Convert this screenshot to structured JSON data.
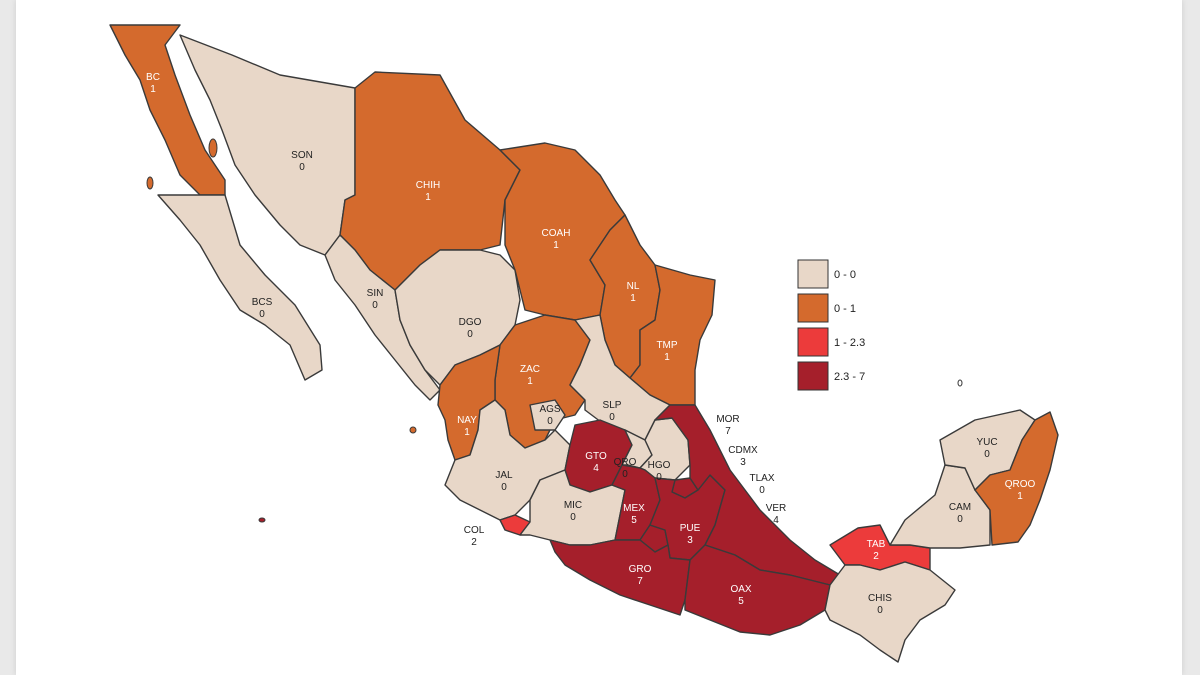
{
  "colors": {
    "c0": "#e8d7c8",
    "c1": "#d46a2d",
    "c2": "#ec3b3b",
    "c3": "#a51f2b"
  },
  "legend": [
    {
      "label": "0 - 0",
      "color": "#e8d7c8"
    },
    {
      "label": "0 - 1",
      "color": "#d46a2d"
    },
    {
      "label": "1 - 2.3",
      "color": "#ec3b3b"
    },
    {
      "label": "2.3 - 7",
      "color": "#a51f2b"
    }
  ],
  "states": {
    "BC": {
      "abbr": "BC",
      "value": "1"
    },
    "BCS": {
      "abbr": "BCS",
      "value": "0"
    },
    "SON": {
      "abbr": "SON",
      "value": "0"
    },
    "CHIH": {
      "abbr": "CHIH",
      "value": "1"
    },
    "COAH": {
      "abbr": "COAH",
      "value": "1"
    },
    "NL": {
      "abbr": "NL",
      "value": "1"
    },
    "TMP": {
      "abbr": "TMP",
      "value": "1"
    },
    "SIN": {
      "abbr": "SIN",
      "value": "0"
    },
    "DGO": {
      "abbr": "DGO",
      "value": "0"
    },
    "ZAC": {
      "abbr": "ZAC",
      "value": "1"
    },
    "NAY": {
      "abbr": "NAY",
      "value": "1"
    },
    "AGS": {
      "abbr": "AGS",
      "value": "0"
    },
    "SLP": {
      "abbr": "SLP",
      "value": "0"
    },
    "JAL": {
      "abbr": "JAL",
      "value": "0"
    },
    "GTO": {
      "abbr": "GTO",
      "value": "4"
    },
    "QRO": {
      "abbr": "QRO",
      "value": "0"
    },
    "HGO": {
      "abbr": "HGO",
      "value": "0"
    },
    "COL": {
      "abbr": "COL",
      "value": "2"
    },
    "MIC": {
      "abbr": "MIC",
      "value": "0"
    },
    "MEX": {
      "abbr": "MEX",
      "value": "5"
    },
    "PUE": {
      "abbr": "PUE",
      "value": "3"
    },
    "GRO": {
      "abbr": "GRO",
      "value": "7"
    },
    "OAX": {
      "abbr": "OAX",
      "value": "5"
    },
    "VER": {
      "abbr": "VER",
      "value": "4"
    },
    "MOR": {
      "abbr": "MOR",
      "value": "7"
    },
    "CDMX": {
      "abbr": "CDMX",
      "value": "3"
    },
    "TLAX": {
      "abbr": "TLAX",
      "value": "0"
    },
    "TAB": {
      "abbr": "TAB",
      "value": "2"
    },
    "CHIS": {
      "abbr": "CHIS",
      "value": "0"
    },
    "CAM": {
      "abbr": "CAM",
      "value": "0"
    },
    "YUC": {
      "abbr": "YUC",
      "value": "0"
    },
    "QROO": {
      "abbr": "QROO",
      "value": "1"
    }
  }
}
